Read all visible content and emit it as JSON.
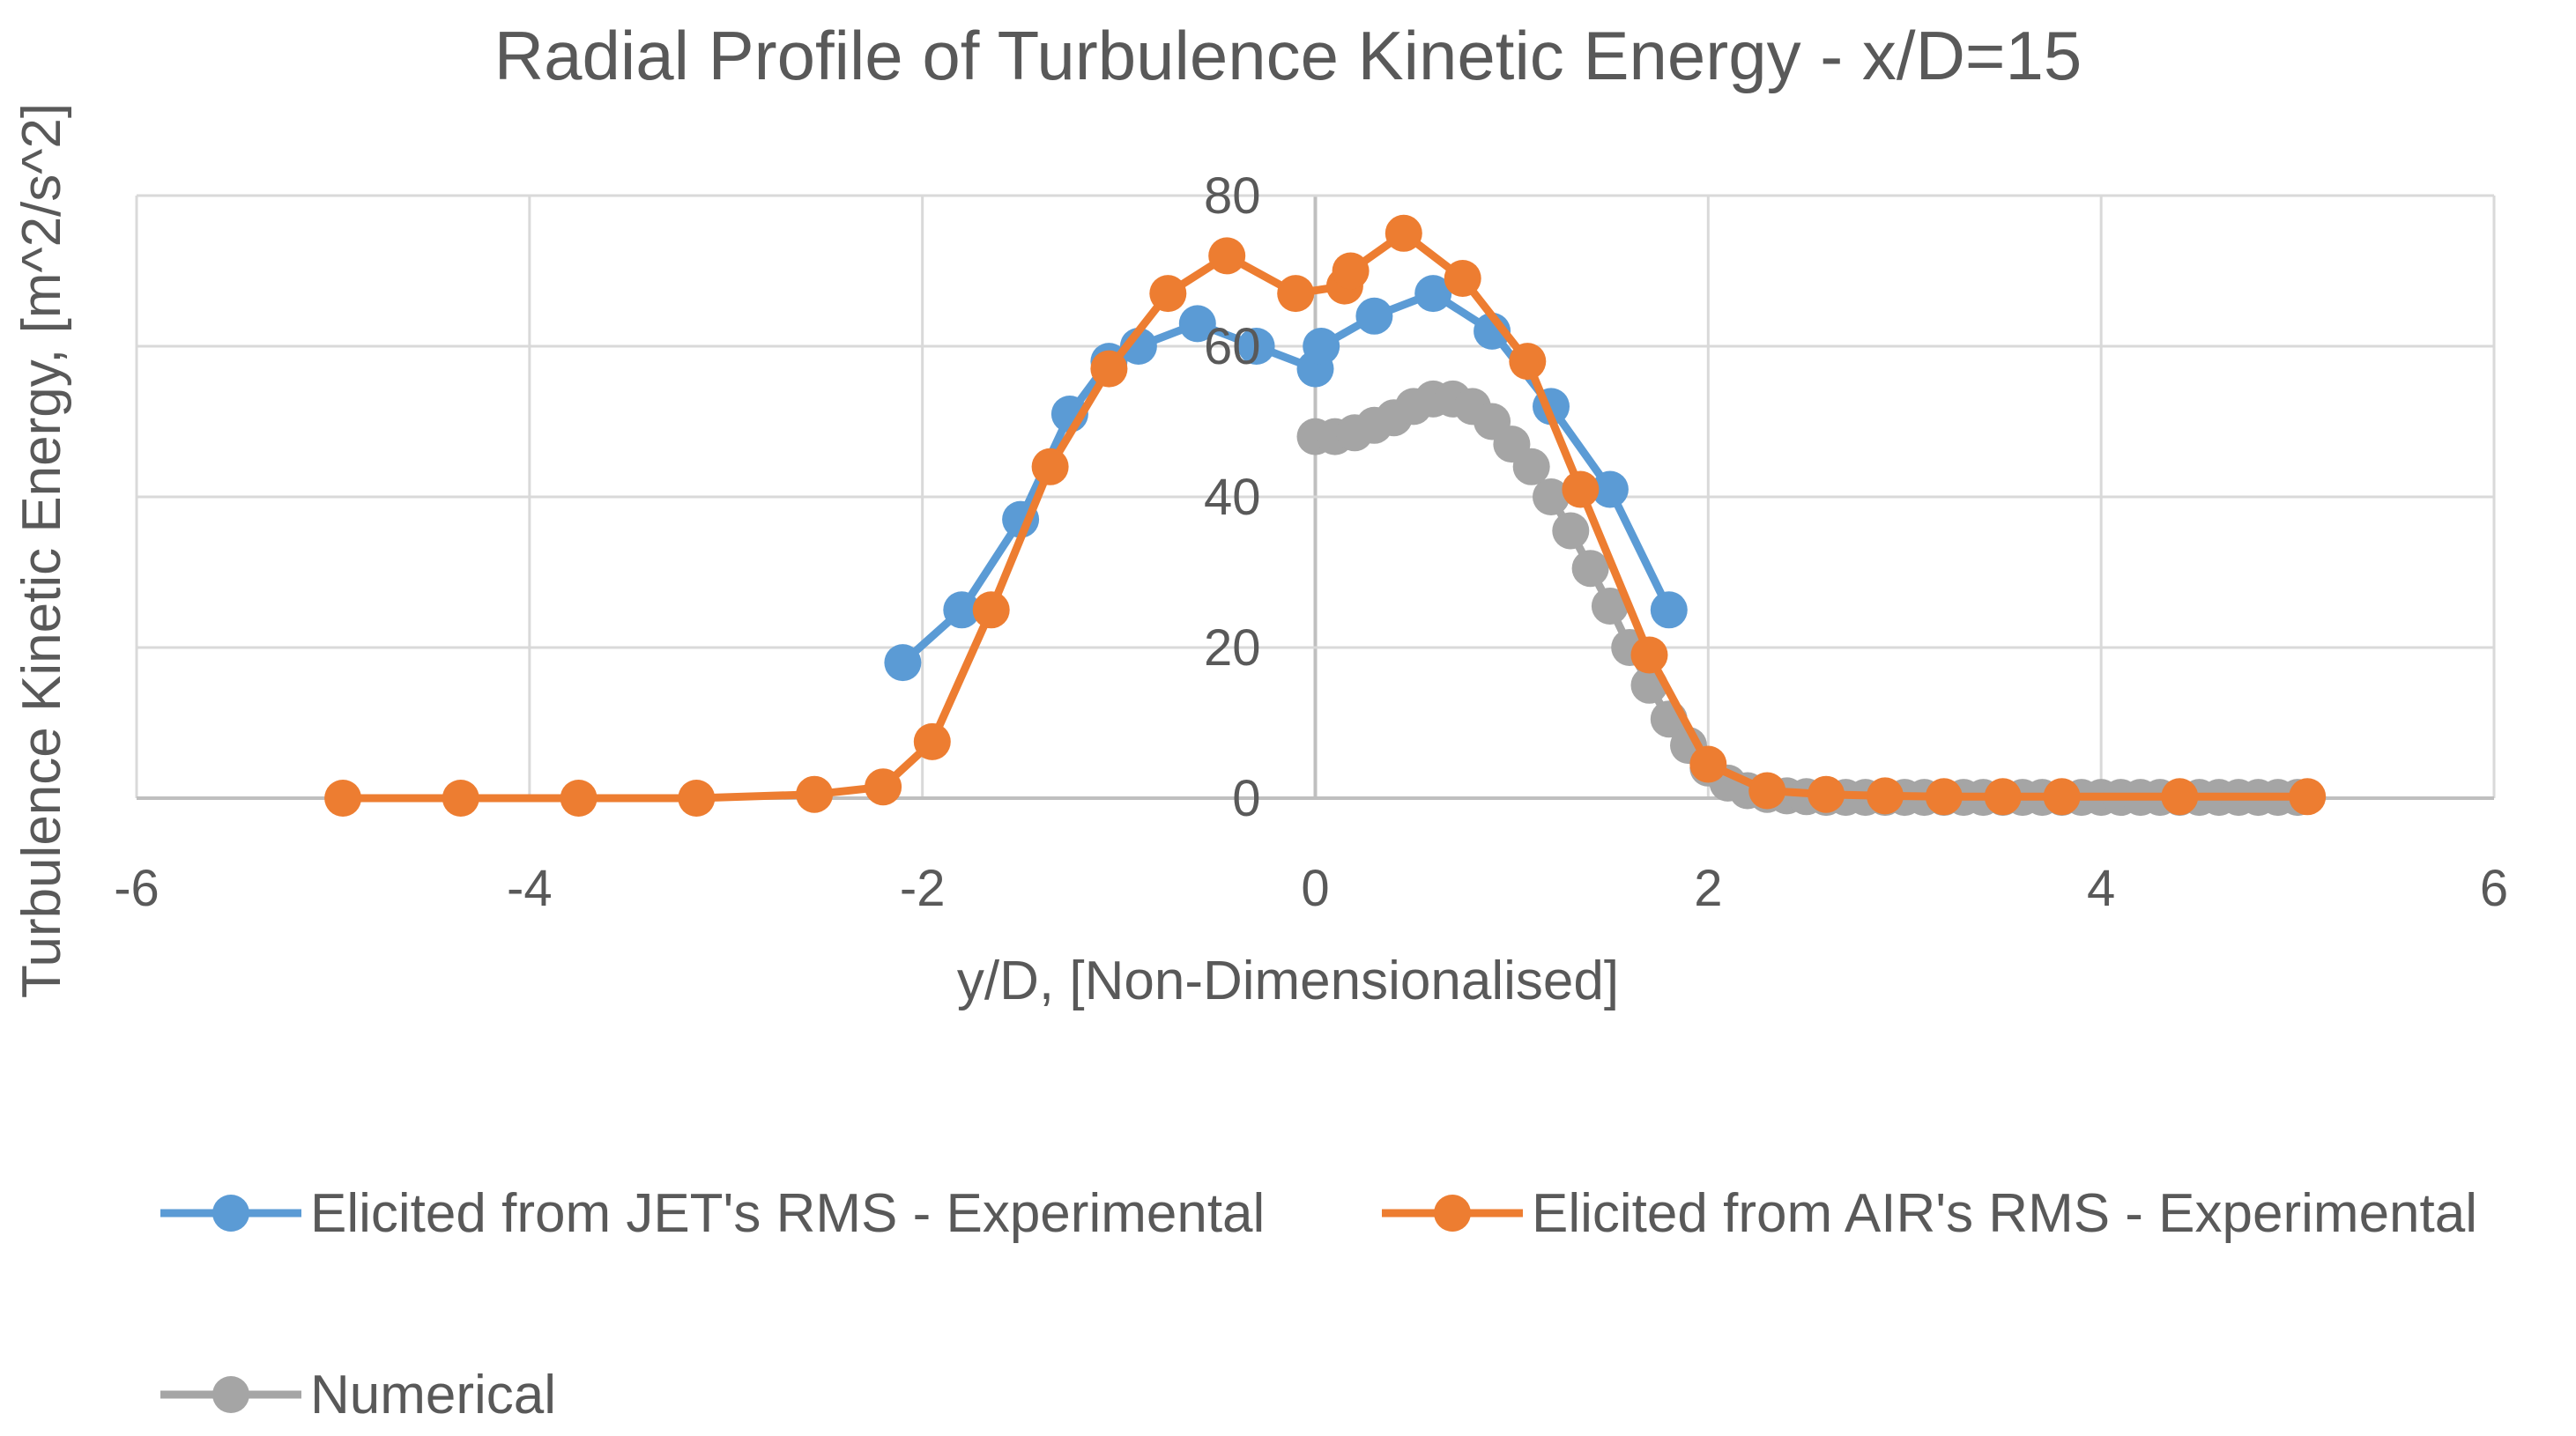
{
  "chart_data": {
    "type": "scatter",
    "title": "Radial Profile of Turbulence Kinetic Energy - x/D=15",
    "xlabel": "y/D, [Non-Dimensionalised]",
    "ylabel": "Turbulence Kinetic Energy, [m^2/s^2]",
    "xlim": [
      -6,
      6
    ],
    "ylim": [
      0,
      80
    ],
    "x_ticks": [
      "-6",
      "-4",
      "-2",
      "0",
      "2",
      "4",
      "6"
    ],
    "y_ticks": [
      "0",
      "20",
      "40",
      "60",
      "80"
    ],
    "grid": true,
    "legend_position": "bottom",
    "series": [
      {
        "name": "Elicited from JET's RMS - Experimental",
        "color": "#5B9BD5",
        "x": [
          -2.1,
          -1.8,
          -1.5,
          -1.25,
          -1.05,
          -0.9,
          -0.6,
          -0.3,
          0.0,
          0.03,
          0.3,
          0.6,
          0.9,
          1.2,
          1.5,
          1.8
        ],
        "y": [
          18,
          25,
          37,
          51,
          58,
          60,
          63,
          60,
          57,
          60,
          64,
          67,
          62,
          52,
          41,
          25
        ]
      },
      {
        "name": "Elicited from AIR's RMS - Experimental",
        "color": "#ED7D31",
        "x": [
          -4.95,
          -4.35,
          -3.75,
          -3.15,
          -2.55,
          -2.2,
          -1.95,
          -1.65,
          -1.35,
          -1.05,
          -0.75,
          -0.45,
          -0.1,
          0.15,
          0.18,
          0.45,
          0.75,
          1.08,
          1.35,
          1.7,
          2.0,
          2.3,
          2.6,
          2.9,
          3.2,
          3.5,
          3.8,
          4.4,
          5.05
        ],
        "y": [
          0,
          0,
          0,
          0,
          0.5,
          1.5,
          7.5,
          25,
          44,
          57,
          67,
          72,
          67,
          68,
          70,
          75,
          69,
          58,
          41,
          19,
          4.5,
          1,
          0.5,
          0.3,
          0.2,
          0.2,
          0.2,
          0.2,
          0.2
        ]
      },
      {
        "name": "Numerical",
        "color": "#A5A5A5",
        "x": [
          0.0,
          0.1,
          0.2,
          0.3,
          0.4,
          0.5,
          0.6,
          0.7,
          0.8,
          0.9,
          1.0,
          1.1,
          1.2,
          1.3,
          1.4,
          1.5,
          1.6,
          1.7,
          1.8,
          1.9,
          2.0,
          2.1,
          2.2,
          2.3,
          2.4,
          2.5,
          2.6,
          2.7,
          2.8,
          2.9,
          3.0,
          3.1,
          3.2,
          3.3,
          3.4,
          3.5,
          3.6,
          3.7,
          3.8,
          3.9,
          4.0,
          4.1,
          4.2,
          4.3,
          4.4,
          4.5,
          4.6,
          4.7,
          4.8,
          4.9,
          5.0
        ],
        "y": [
          48,
          48,
          48.5,
          49.5,
          50.5,
          52,
          53,
          53,
          52,
          50,
          47,
          44,
          40,
          35.5,
          30.5,
          25.5,
          20,
          15,
          10.5,
          7,
          4,
          2,
          1,
          0.5,
          0.3,
          0.2,
          0.1,
          0.1,
          0.1,
          0.1,
          0.1,
          0.1,
          0.1,
          0.1,
          0.1,
          0.1,
          0.1,
          0.1,
          0.1,
          0.1,
          0.1,
          0.1,
          0.1,
          0.1,
          0.1,
          0.1,
          0.1,
          0.1,
          0.1,
          0.1,
          0.1
        ]
      }
    ]
  }
}
